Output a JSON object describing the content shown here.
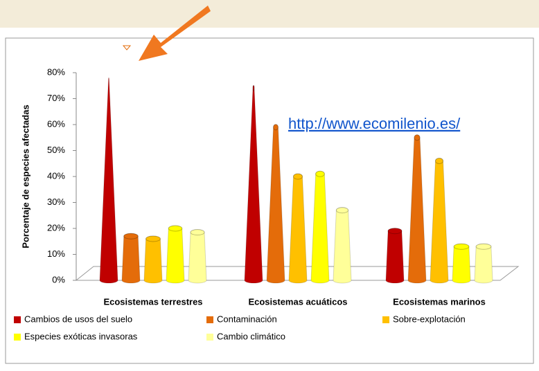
{
  "chart_data": {
    "type": "bar",
    "y_label": "Porcentaje de especies afectadas",
    "link": "http://www.ecomilenio.es/",
    "categories": [
      "Ecosistemas terrestres",
      "Ecosistemas acuáticos",
      "Ecosistemas marinos"
    ],
    "series": [
      {
        "name": "Cambios de usos del suelo",
        "color": "#c00000",
        "values": [
          77,
          74,
          19
        ]
      },
      {
        "name": "Contaminación",
        "color": "#e46c0a",
        "values": [
          17,
          59,
          55
        ]
      },
      {
        "name": "Sobre-explotación",
        "color": "#ffc000",
        "values": [
          16,
          40,
          46
        ]
      },
      {
        "name": "Especies exóticas invasoras",
        "color": "#ffff00",
        "values": [
          20,
          41,
          13
        ]
      },
      {
        "name": "Cambio climático",
        "color": "#ffff99",
        "values": [
          18.5,
          27,
          13
        ]
      }
    ],
    "ylim": [
      0,
      80
    ],
    "yticks": [
      {
        "value": 0,
        "label": "0%"
      },
      {
        "value": 10,
        "label": "10%"
      },
      {
        "value": 20,
        "label": "20%"
      },
      {
        "value": 30,
        "label": "30%"
      },
      {
        "value": 40,
        "label": "40%"
      },
      {
        "value": 50,
        "label": "50%"
      },
      {
        "value": 60,
        "label": "60%"
      },
      {
        "value": 70,
        "label": "70%"
      },
      {
        "value": 80,
        "label": "80%"
      }
    ]
  }
}
